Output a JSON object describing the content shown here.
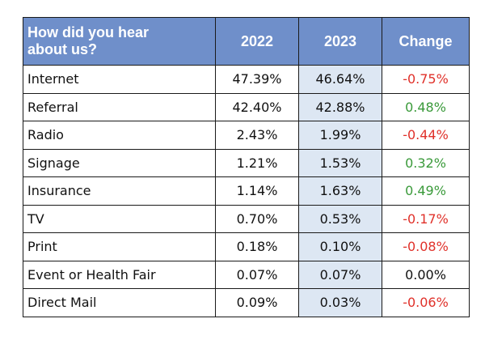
{
  "table": {
    "headers": {
      "question_line1": "How did you hear",
      "question_line2": "about us?",
      "col_2022": "2022",
      "col_2023": "2023",
      "col_change": "Change"
    },
    "rows": [
      {
        "source": "Internet",
        "y2022": "47.39%",
        "y2023": "46.64%",
        "change": "-0.75%",
        "trend": "negative"
      },
      {
        "source": "Referral",
        "y2022": "42.40%",
        "y2023": "42.88%",
        "change": "0.48%",
        "trend": "positive"
      },
      {
        "source": "Radio",
        "y2022": "2.43%",
        "y2023": "1.99%",
        "change": "-0.44%",
        "trend": "negative"
      },
      {
        "source": "Signage",
        "y2022": "1.21%",
        "y2023": "1.53%",
        "change": "0.32%",
        "trend": "positive"
      },
      {
        "source": "Insurance",
        "y2022": "1.14%",
        "y2023": "1.63%",
        "change": "0.49%",
        "trend": "positive"
      },
      {
        "source": "TV",
        "y2022": "0.70%",
        "y2023": "0.53%",
        "change": "-0.17%",
        "trend": "negative"
      },
      {
        "source": "Print",
        "y2022": "0.18%",
        "y2023": "0.10%",
        "change": "-0.08%",
        "trend": "negative"
      },
      {
        "source": "Event or Health Fair",
        "y2022": "0.07%",
        "y2023": "0.07%",
        "change": "0.00%",
        "trend": "neutral"
      },
      {
        "source": "Direct Mail",
        "y2022": "0.09%",
        "y2023": "0.03%",
        "change": "-0.06%",
        "trend": "negative"
      }
    ]
  },
  "colors": {
    "header_bg": "#6f8fca",
    "col_2023_bg": "#dde7f3",
    "negative": "#e0312a",
    "positive": "#3a9a3a"
  }
}
